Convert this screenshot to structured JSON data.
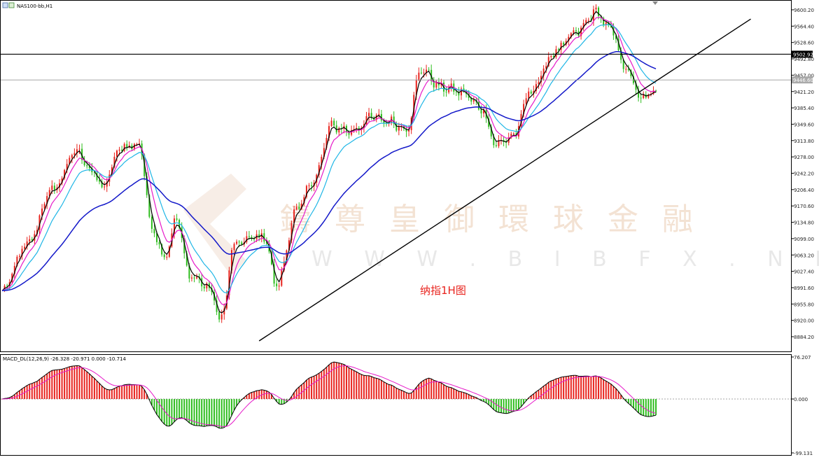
{
  "header": {
    "symbol": "NAS100-bb,H1"
  },
  "annotation": "纳指1H图",
  "watermark": {
    "cn": "鑄 尊 皇 御 環 球 金 融",
    "en": "W W W . B I B F X . N E T"
  },
  "price_axis": {
    "labels": [
      "9600.20",
      "9564.40",
      "9528.60",
      "9492.80",
      "9457.00",
      "9421.20",
      "9385.40",
      "9349.60",
      "9313.80",
      "9278.00",
      "9242.20",
      "9206.40",
      "9170.60",
      "9134.80",
      "9099.00",
      "9063.20",
      "9027.40",
      "8991.60",
      "8955.80",
      "8920.00",
      "8884.20"
    ],
    "resistance_tag": "9502.92",
    "current_tag": "9446.60"
  },
  "macd_panel": {
    "header": "MACD_DL(12,26,9) -26.328 -20.971 0.000 -10.714",
    "axis_labels": [
      "76.207",
      "0.000",
      "-99.131"
    ]
  },
  "chart_data": {
    "type": "candlestick",
    "title": "纳指1H图",
    "symbol": "NAS100-bb",
    "timeframe": "H1",
    "ylim": [
      8860,
      9615
    ],
    "price_key_points": [
      {
        "bar": 0,
        "price": 8985
      },
      {
        "bar": 10,
        "price": 9085
      },
      {
        "bar": 20,
        "price": 9205
      },
      {
        "bar": 30,
        "price": 9290
      },
      {
        "bar": 37,
        "price": 9240
      },
      {
        "bar": 40,
        "price": 9210
      },
      {
        "bar": 48,
        "price": 9300
      },
      {
        "bar": 55,
        "price": 9305
      },
      {
        "bar": 60,
        "price": 9125
      },
      {
        "bar": 65,
        "price": 9060
      },
      {
        "bar": 70,
        "price": 9140
      },
      {
        "bar": 75,
        "price": 9020
      },
      {
        "bar": 82,
        "price": 8995
      },
      {
        "bar": 88,
        "price": 8925
      },
      {
        "bar": 93,
        "price": 9085
      },
      {
        "bar": 100,
        "price": 9100
      },
      {
        "bar": 105,
        "price": 9105
      },
      {
        "bar": 110,
        "price": 8995
      },
      {
        "bar": 118,
        "price": 9160
      },
      {
        "bar": 125,
        "price": 9230
      },
      {
        "bar": 132,
        "price": 9345
      },
      {
        "bar": 140,
        "price": 9335
      },
      {
        "bar": 148,
        "price": 9365
      },
      {
        "bar": 155,
        "price": 9355
      },
      {
        "bar": 162,
        "price": 9340
      },
      {
        "bar": 168,
        "price": 9470
      },
      {
        "bar": 176,
        "price": 9430
      },
      {
        "bar": 184,
        "price": 9420
      },
      {
        "bar": 192,
        "price": 9385
      },
      {
        "bar": 198,
        "price": 9305
      },
      {
        "bar": 205,
        "price": 9325
      },
      {
        "bar": 212,
        "price": 9425
      },
      {
        "bar": 222,
        "price": 9510
      },
      {
        "bar": 230,
        "price": 9550
      },
      {
        "bar": 238,
        "price": 9595
      },
      {
        "bar": 244,
        "price": 9555
      },
      {
        "bar": 250,
        "price": 9470
      },
      {
        "bar": 256,
        "price": 9405
      },
      {
        "bar": 262,
        "price": 9420
      }
    ],
    "moving_averages": [
      {
        "color": "#000000",
        "period": "fast"
      },
      {
        "color": "#e619c9",
        "period": "medium"
      },
      {
        "color": "#1fb6e6",
        "period": "slow"
      },
      {
        "color": "#1419c9",
        "period": "long"
      }
    ],
    "levels": [
      {
        "label": "9502.92",
        "price": 9502.92,
        "color": "#000000"
      },
      {
        "label": "9446.60",
        "price": 9446.6,
        "color": "#999999"
      }
    ],
    "trendline": {
      "from": {
        "bar": 103,
        "price": 8875
      },
      "to": {
        "bar": 300,
        "price": 9580
      }
    },
    "macd": {
      "params": "12,26,9",
      "values": {
        "macd": -26.328,
        "signal": -20.971,
        "zero": 0.0,
        "histogram": -10.714
      },
      "ylim": [
        -99.131,
        76.207
      ]
    }
  }
}
